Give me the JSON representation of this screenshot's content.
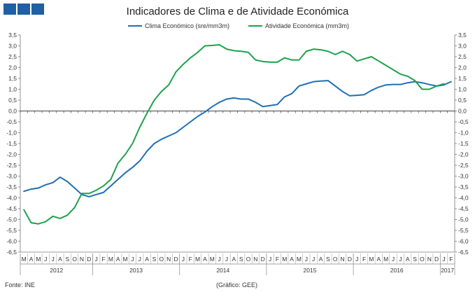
{
  "chart_data": {
    "type": "line",
    "title": "Indicadores de Clima e de Atividade Económica",
    "source": "Fonte: INE",
    "credit": "(Gráfico: GEE)",
    "ylim": [
      -6.5,
      3.5
    ],
    "yticks": [
      "3,5",
      "3,0",
      "2,5",
      "2,0",
      "1,5",
      "1,0",
      "0,5",
      "0,0",
      "-0,5",
      "-1,0",
      "-1,5",
      "-2,0",
      "-2,5",
      "-3,0",
      "-3,5",
      "-4,0",
      "-4,5",
      "-5,0",
      "-5,5",
      "-6,0",
      "-6,5"
    ],
    "months": [
      "M",
      "A",
      "M",
      "J",
      "J",
      "A",
      "S",
      "O",
      "N",
      "D",
      "J",
      "F",
      "M",
      "A",
      "M",
      "J",
      "J",
      "A",
      "S",
      "O",
      "N",
      "D",
      "J",
      "F",
      "M",
      "A",
      "M",
      "J",
      "J",
      "A",
      "S",
      "O",
      "N",
      "D",
      "J",
      "F",
      "M",
      "A",
      "M",
      "J",
      "J",
      "A",
      "S",
      "O",
      "N",
      "D",
      "J",
      "F",
      "M",
      "A",
      "M",
      "J",
      "J",
      "A",
      "S",
      "O",
      "N",
      "D",
      "J",
      "F"
    ],
    "years": [
      {
        "label": "2012",
        "start": 0,
        "end": 10
      },
      {
        "label": "2013",
        "start": 10,
        "end": 22
      },
      {
        "label": "2014",
        "start": 22,
        "end": 34
      },
      {
        "label": "2015",
        "start": 34,
        "end": 46
      },
      {
        "label": "2016",
        "start": 46,
        "end": 58
      },
      {
        "label": "2017",
        "start": 58,
        "end": 60
      }
    ],
    "series": [
      {
        "name": "Clima Económico (sre/mm3m)",
        "color": "#1f6fb4",
        "values": [
          -3.7,
          -3.6,
          -3.55,
          -3.4,
          -3.3,
          -3.05,
          -3.25,
          -3.55,
          -3.85,
          -3.95,
          -3.85,
          -3.75,
          -3.45,
          -3.15,
          -2.85,
          -2.6,
          -2.3,
          -1.85,
          -1.5,
          -1.3,
          -1.15,
          -1.0,
          -0.75,
          -0.5,
          -0.25,
          -0.05,
          0.2,
          0.4,
          0.55,
          0.6,
          0.55,
          0.55,
          0.4,
          0.2,
          0.25,
          0.3,
          0.65,
          0.8,
          1.15,
          1.25,
          1.35,
          1.38,
          1.4,
          1.15,
          0.9,
          0.7,
          0.72,
          0.75,
          0.95,
          1.1,
          1.2,
          1.22,
          1.22,
          1.3,
          1.35,
          1.3,
          1.22,
          1.15,
          1.2,
          1.35
        ]
      },
      {
        "name": "Atividade Económica (mm3m)",
        "color": "#1aa34a",
        "values": [
          -4.55,
          -5.15,
          -5.2,
          -5.1,
          -4.85,
          -4.95,
          -4.8,
          -4.45,
          -3.8,
          -3.8,
          -3.65,
          -3.45,
          -3.15,
          -2.4,
          -2.0,
          -1.5,
          -0.75,
          -0.1,
          0.5,
          0.9,
          1.2,
          1.8,
          2.15,
          2.45,
          2.7,
          3.0,
          3.02,
          3.05,
          2.85,
          2.78,
          2.75,
          2.7,
          2.35,
          2.28,
          2.25,
          2.25,
          2.45,
          2.35,
          2.35,
          2.75,
          2.85,
          2.82,
          2.75,
          2.6,
          2.75,
          2.6,
          2.3,
          2.4,
          2.5,
          2.3,
          2.1,
          1.9,
          1.7,
          1.6,
          1.4,
          1.0,
          1.0,
          1.15,
          1.25,
          null
        ]
      }
    ]
  }
}
